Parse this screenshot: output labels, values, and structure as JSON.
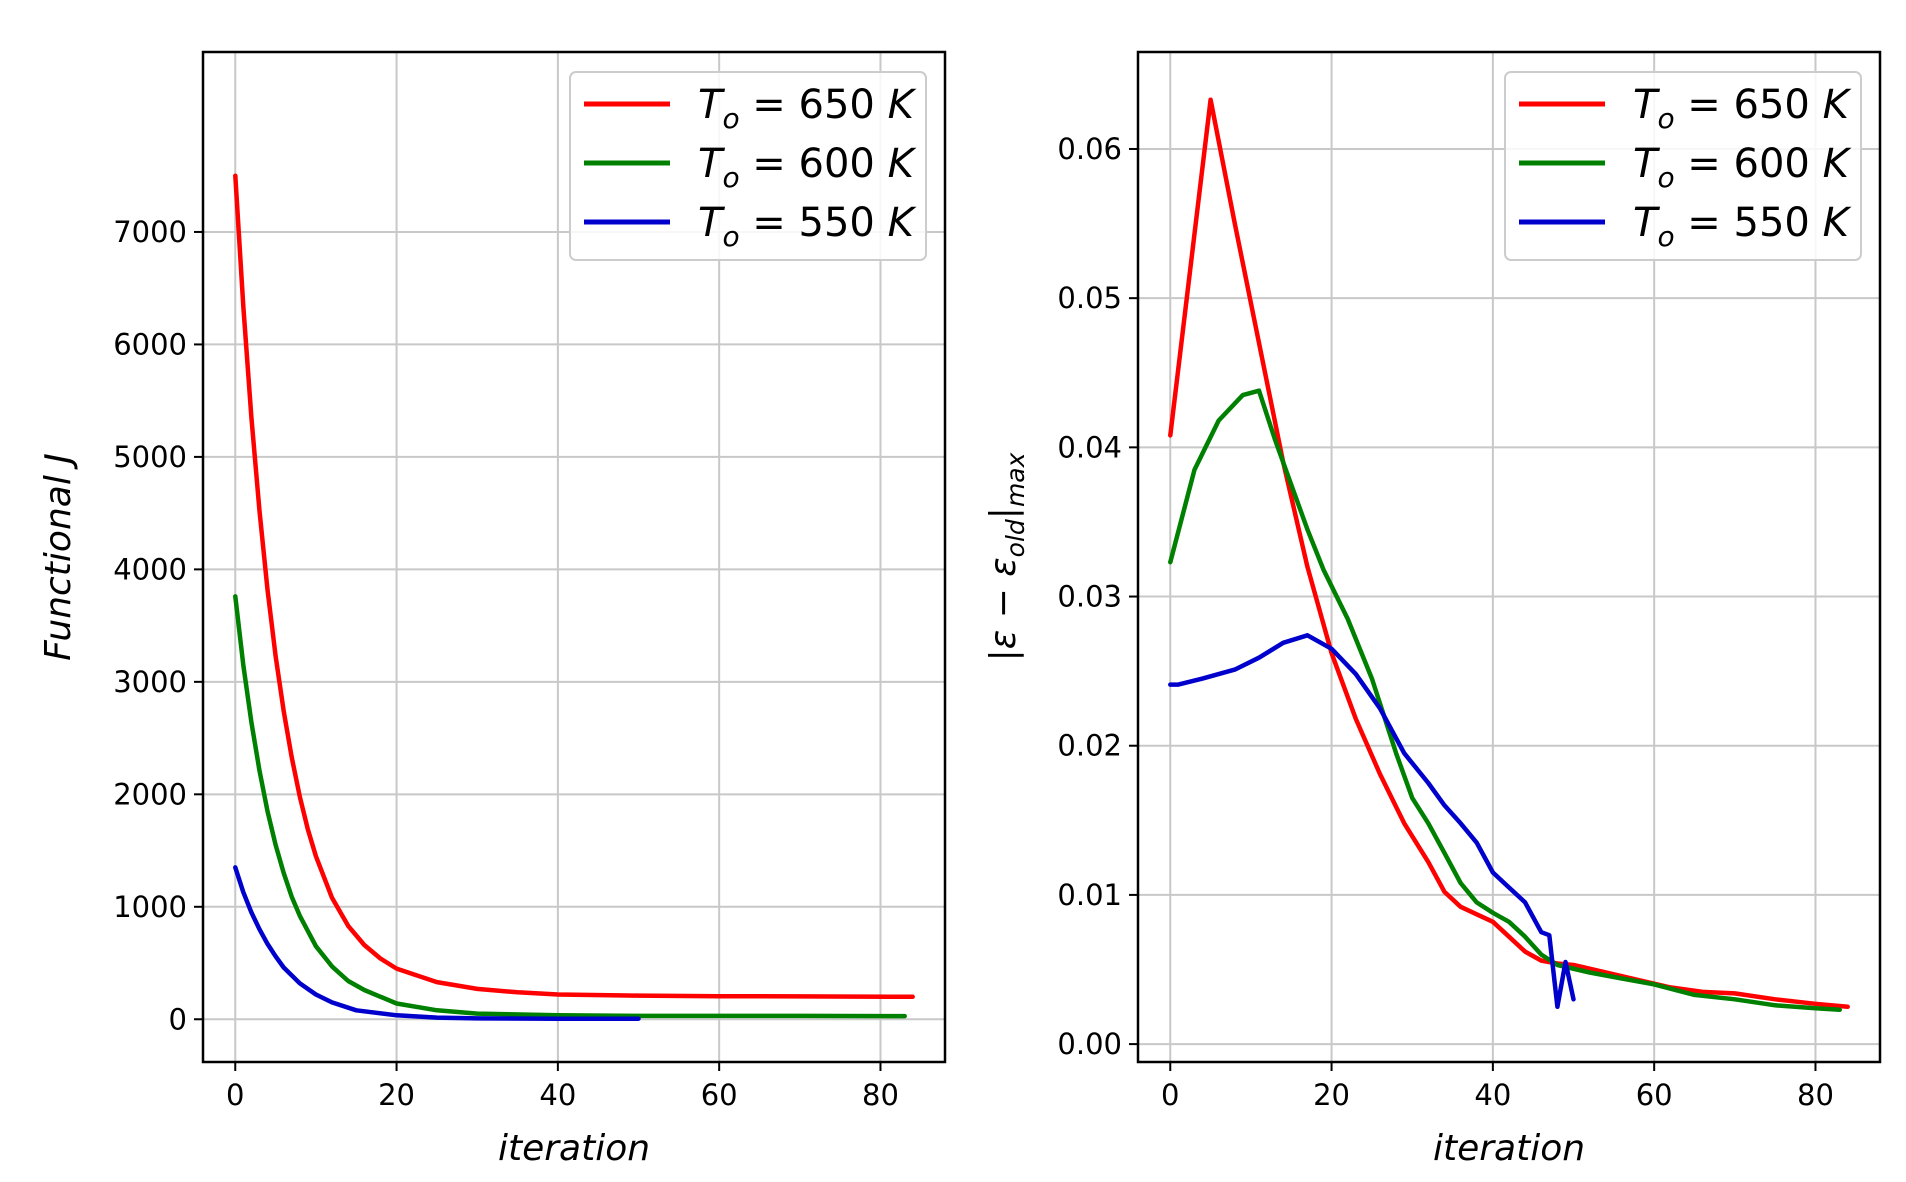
{
  "chart_data": [
    {
      "type": "line",
      "xlabel": "iteration",
      "ylabel": "Functional J",
      "xlim": [
        -4,
        88
      ],
      "ylim": [
        -380,
        8600
      ],
      "xticks": [
        "0",
        "20",
        "40",
        "60",
        "80"
      ],
      "yticks": [
        "0",
        "1000",
        "2000",
        "3000",
        "4000",
        "5000",
        "6000",
        "7000"
      ],
      "legend_position": "top-right",
      "grid": true,
      "series": [
        {
          "name": "T_o = 650 K",
          "legend_symbol": "T",
          "legend_sub": "o",
          "legend_rest": " = 650 ",
          "legend_unit": "K",
          "color": "#ff0000",
          "x": [
            0,
            1,
            2,
            3,
            4,
            5,
            6,
            7,
            8,
            9,
            10,
            12,
            14,
            16,
            18,
            20,
            25,
            30,
            35,
            40,
            50,
            60,
            70,
            84
          ],
          "y": [
            7500,
            6340,
            5350,
            4520,
            3820,
            3230,
            2740,
            2330,
            1980,
            1690,
            1450,
            1080,
            830,
            660,
            540,
            450,
            330,
            270,
            240,
            220,
            210,
            205,
            203,
            200
          ]
        },
        {
          "name": "T_o = 600 K",
          "legend_symbol": "T",
          "legend_sub": "o",
          "legend_rest": " = 600 ",
          "legend_unit": "K",
          "color": "#008000",
          "x": [
            0,
            1,
            2,
            3,
            4,
            5,
            6,
            7,
            8,
            10,
            12,
            14,
            16,
            20,
            25,
            30,
            40,
            50,
            60,
            70,
            83
          ],
          "y": [
            3760,
            3150,
            2640,
            2210,
            1850,
            1550,
            1300,
            1090,
            920,
            650,
            470,
            340,
            260,
            140,
            80,
            50,
            35,
            30,
            30,
            30,
            28
          ]
        },
        {
          "name": "T_o = 550 K",
          "legend_symbol": "T",
          "legend_sub": "o",
          "legend_rest": " = 550 ",
          "legend_unit": "K",
          "color": "#0000cc",
          "x": [
            0,
            1,
            2,
            3,
            4,
            5,
            6,
            8,
            10,
            12,
            15,
            20,
            25,
            30,
            40,
            50
          ],
          "y": [
            1350,
            1130,
            950,
            800,
            670,
            560,
            460,
            320,
            220,
            150,
            80,
            35,
            15,
            8,
            5,
            5
          ]
        }
      ]
    },
    {
      "type": "line",
      "xlabel": "iteration",
      "ylabel": "|ε − ε_old|_max",
      "ylabel_parts": {
        "a": "|ε − ε",
        "sub1": "old",
        "b": "|",
        "sub2": "max"
      },
      "xlim": [
        -4,
        88
      ],
      "ylim": [
        -0.0012,
        0.0665
      ],
      "xticks": [
        "0",
        "20",
        "40",
        "60",
        "80"
      ],
      "yticks": [
        "0.00",
        "0.01",
        "0.02",
        "0.03",
        "0.04",
        "0.05",
        "0.06"
      ],
      "legend_position": "top-right",
      "grid": true,
      "series": [
        {
          "name": "T_o = 650 K",
          "legend_symbol": "T",
          "legend_sub": "o",
          "legend_rest": " = 650 ",
          "legend_unit": "K",
          "color": "#ff0000",
          "x": [
            0,
            5,
            8,
            11,
            14,
            17,
            20,
            23,
            26,
            29,
            32,
            34,
            36,
            38,
            40,
            42,
            44,
            46,
            48,
            50,
            54,
            58,
            62,
            66,
            70,
            75,
            80,
            84
          ],
          "y": [
            0.0408,
            0.0633,
            0.055,
            0.047,
            0.039,
            0.032,
            0.0262,
            0.0218,
            0.0181,
            0.0148,
            0.0122,
            0.0102,
            0.0092,
            0.0087,
            0.0082,
            0.0072,
            0.0062,
            0.0056,
            0.0054,
            0.0053,
            0.0048,
            0.0043,
            0.0038,
            0.0035,
            0.0034,
            0.003,
            0.0027,
            0.0025
          ]
        },
        {
          "name": "T_o = 600 K",
          "legend_symbol": "T",
          "legend_sub": "o",
          "legend_rest": " = 600 ",
          "legend_unit": "K",
          "color": "#008000",
          "x": [
            0,
            3,
            6,
            9,
            11,
            13,
            15,
            17,
            19,
            22,
            25,
            28,
            30,
            32,
            34,
            36,
            38,
            40,
            42,
            44,
            46,
            48,
            52,
            56,
            60,
            65,
            70,
            75,
            80,
            83
          ],
          "y": [
            0.0323,
            0.0385,
            0.0418,
            0.0435,
            0.0438,
            0.0405,
            0.0375,
            0.0345,
            0.0318,
            0.0285,
            0.0245,
            0.0195,
            0.0165,
            0.0148,
            0.0128,
            0.0108,
            0.0095,
            0.0088,
            0.0082,
            0.0072,
            0.006,
            0.0053,
            0.0048,
            0.0044,
            0.004,
            0.0033,
            0.003,
            0.0026,
            0.0024,
            0.0023
          ]
        },
        {
          "name": "T_o = 550 K",
          "legend_symbol": "T",
          "legend_sub": "o",
          "legend_rest": " = 550 ",
          "legend_unit": "K",
          "color": "#0000cc",
          "x": [
            0,
            1,
            4,
            8,
            11,
            14,
            17,
            20,
            23,
            26,
            29,
            32,
            34,
            36,
            38,
            40,
            42,
            44,
            45,
            46,
            47,
            48,
            49,
            50
          ],
          "y": [
            0.0241,
            0.0241,
            0.0245,
            0.0251,
            0.0259,
            0.0269,
            0.0274,
            0.0265,
            0.0248,
            0.0225,
            0.0195,
            0.0175,
            0.016,
            0.0148,
            0.0135,
            0.0115,
            0.0105,
            0.0095,
            0.0085,
            0.0075,
            0.0073,
            0.0025,
            0.0055,
            0.003
          ]
        }
      ]
    }
  ]
}
